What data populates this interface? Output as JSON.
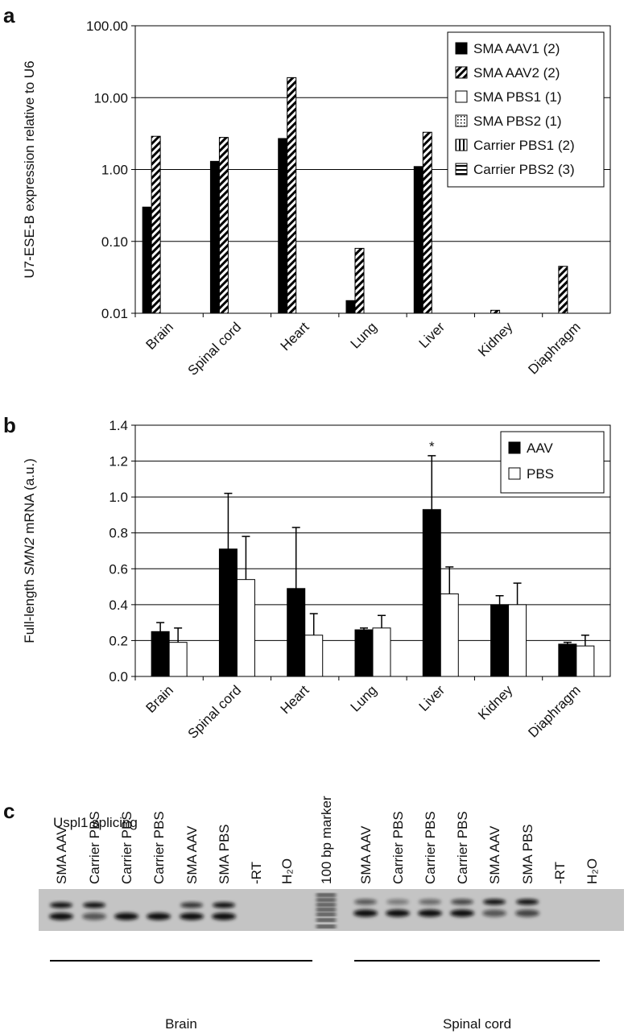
{
  "panel_labels": [
    "a",
    "b",
    "c"
  ],
  "chart_data": [
    {
      "type": "bar",
      "log_scale": true,
      "grid": true,
      "legend": "upper right",
      "ylabel": [
        "U7-ESE-B expression relative to U6"
      ],
      "categories": [
        "Brain",
        "Spinal cord",
        "Heart",
        "Lung",
        "Liver",
        "Kidney",
        "Diaphragm"
      ],
      "ylim": [
        0.01,
        100
      ],
      "yticks": [
        {
          "value": 0.01,
          "label": "0.01"
        },
        {
          "value": 0.1,
          "label": "0.10"
        },
        {
          "value": 1,
          "label": "1.00"
        },
        {
          "value": 10,
          "label": "10.00"
        },
        {
          "value": 100,
          "label": "100.00"
        }
      ],
      "series": [
        {
          "name": "SMA AAV1 (2)",
          "color": "#000000",
          "pattern": "solid",
          "values": [
            0.3,
            1.3,
            2.7,
            0.015,
            1.1,
            null,
            null
          ]
        },
        {
          "name": "SMA AAV2 (2)",
          "color": "#000000",
          "pattern": "diagonal",
          "values": [
            2.9,
            2.8,
            19,
            0.08,
            3.3,
            0.011,
            0.045
          ]
        },
        {
          "name": "SMA PBS1 (1)",
          "color": "#000000",
          "pattern": "none",
          "values": [
            null,
            null,
            null,
            null,
            null,
            null,
            null
          ]
        },
        {
          "name": "SMA PBS2 (1)",
          "color": "#000000",
          "pattern": "dotted",
          "values": [
            null,
            null,
            null,
            null,
            null,
            null,
            null
          ]
        },
        {
          "name": "Carrier PBS1 (2)",
          "color": "#000000",
          "pattern": "vertical",
          "values": [
            null,
            null,
            null,
            null,
            null,
            null,
            null
          ]
        },
        {
          "name": "Carrier PBS2 (3)",
          "color": "#000000",
          "pattern": "horizontal",
          "values": [
            null,
            null,
            null,
            null,
            null,
            null,
            null
          ]
        }
      ]
    },
    {
      "type": "bar",
      "log_scale": false,
      "grid": true,
      "legend": "upper right",
      "ylabel": [
        "Full-length ",
        "SMN2",
        " mRNA (a.u.)"
      ],
      "categories": [
        "Brain",
        "Spinal cord",
        "Heart",
        "Lung",
        "Liver",
        "Kidney",
        "Diaphragm"
      ],
      "ylim": [
        0,
        1.4
      ],
      "yticks": [
        {
          "value": 0,
          "label": "0.0"
        },
        0.2,
        0.4,
        0.6,
        0.8,
        {
          "value": 1,
          "label": "1.0"
        },
        1.2,
        1.4
      ],
      "series": [
        {
          "name": "AAV",
          "color": "#000000",
          "pattern": "solid",
          "values": [
            0.25,
            0.71,
            0.49,
            0.26,
            0.93,
            0.4,
            0.18
          ],
          "errors": [
            0.05,
            0.31,
            0.34,
            0.01,
            0.3,
            0.05,
            0.01
          ]
        },
        {
          "name": "PBS",
          "color": "#000000",
          "pattern": "none",
          "values": [
            0.19,
            0.54,
            0.23,
            0.27,
            0.46,
            0.4,
            0.17
          ],
          "errors": [
            0.08,
            0.24,
            0.12,
            0.07,
            0.15,
            0.12,
            0.06
          ]
        }
      ],
      "annotations": [
        {
          "text": "*",
          "series": "AAV",
          "category": "Liver"
        }
      ]
    }
  ],
  "gel": {
    "title": "Uspl1 splicing",
    "lanes": [
      "SMA AAV",
      "Carrier PBS",
      "Carrier PBS",
      "Carrier PBS",
      "SMA AAV",
      "SMA PBS",
      "-RT",
      "H₂O",
      "100 bp marker",
      "SMA AAV",
      "Carrier PBS",
      "Carrier PBS",
      "Carrier PBS",
      "SMA AAV",
      "SMA PBS",
      "-RT",
      "H₂O"
    ],
    "groups": [
      "Brain",
      "Spinal cord"
    ]
  }
}
